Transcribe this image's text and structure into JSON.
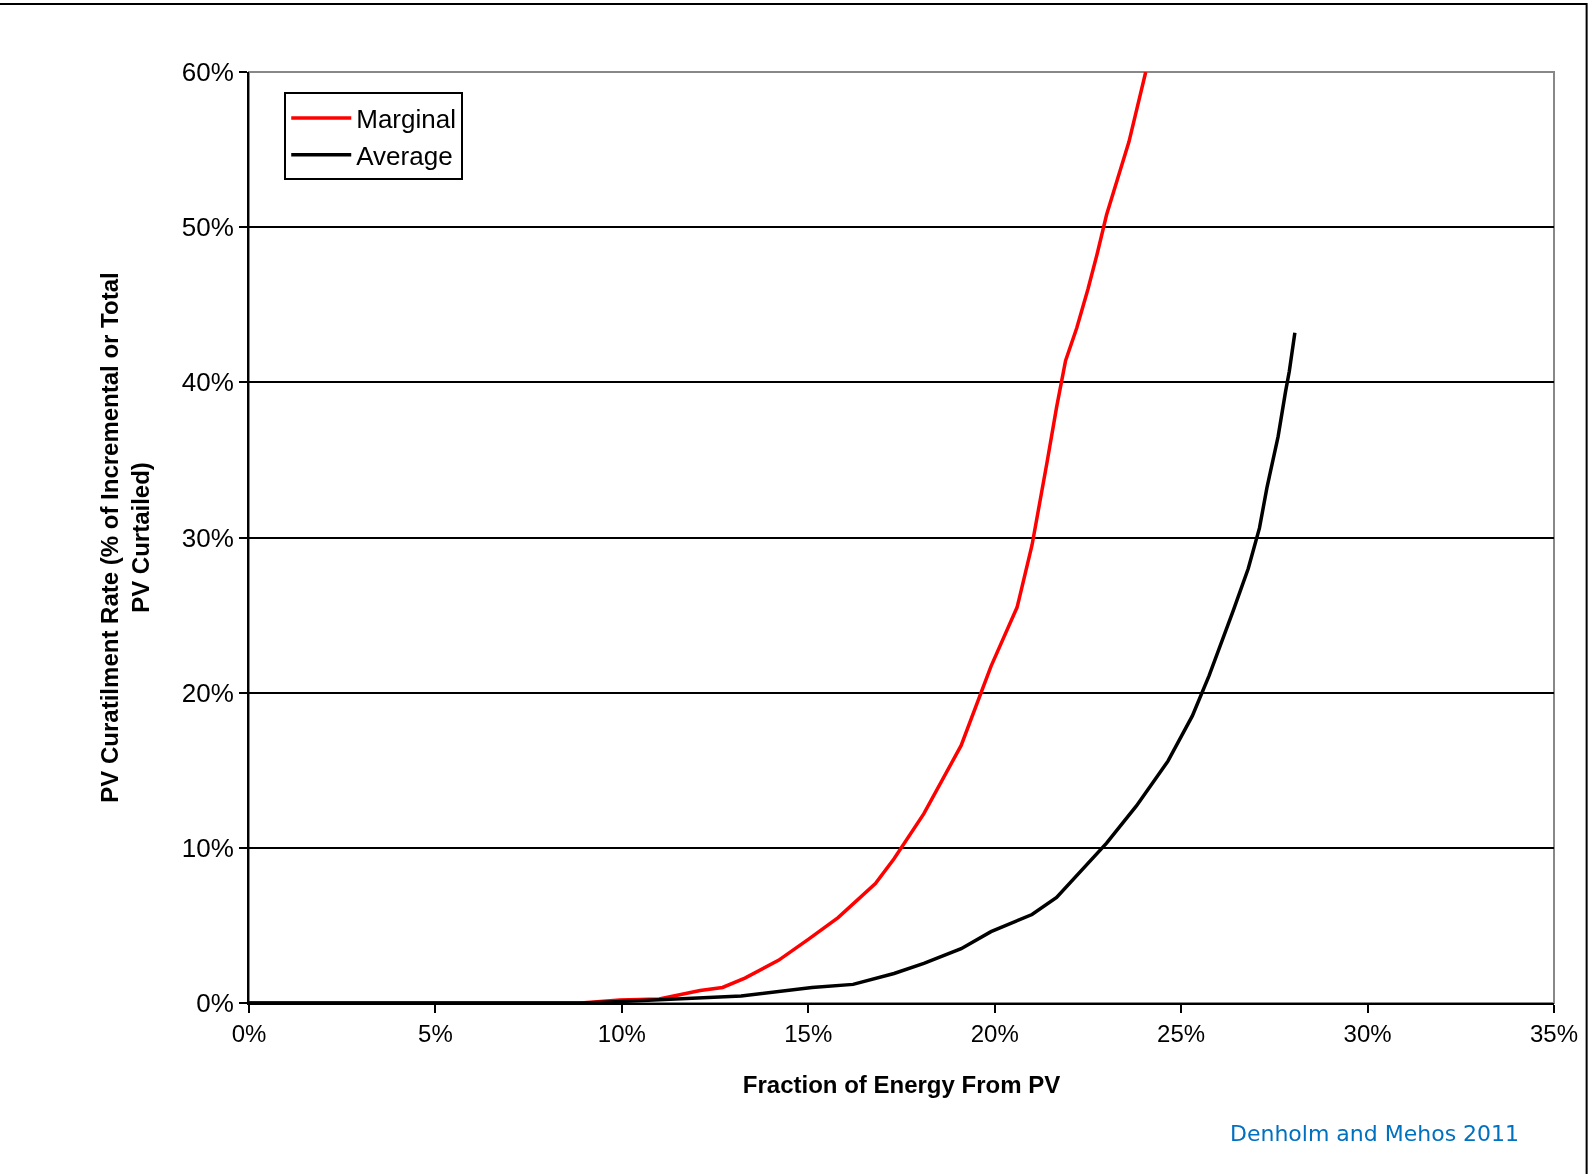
{
  "chart_data": {
    "type": "line",
    "xlabel": "Fraction of Energy From PV",
    "ylabel": "PV Curatilment Rate (% of Incremental or Total PV Curtailed)",
    "series": [
      {
        "name": "Marginal",
        "color": "#ff0000",
        "x": [
          0,
          8.9,
          9.95,
          11.0,
          12.1,
          12.7,
          13.3,
          14.2,
          15.0,
          15.8,
          16.8,
          17.3,
          18.1,
          19.1,
          19.9,
          20.6,
          21.0,
          21.4,
          21.66,
          21.9,
          22.2,
          22.5,
          22.75,
          23.0,
          23.6,
          24.05
        ],
        "values": [
          0,
          0,
          0.2,
          0.26,
          0.8,
          1.0,
          1.6,
          2.75,
          4.1,
          5.5,
          7.7,
          9.3,
          12.2,
          16.6,
          21.7,
          25.5,
          29.5,
          34.8,
          38.4,
          41.4,
          43.5,
          46.0,
          48.3,
          50.8,
          55.5,
          60
        ]
      },
      {
        "name": "Average",
        "color": "#000000",
        "x": [
          0,
          9.0,
          10.0,
          13.2,
          15.1,
          16.2,
          17.3,
          18.1,
          19.1,
          19.9,
          21.0,
          21.66,
          23.0,
          23.8,
          24.65,
          25.3,
          25.75,
          26.4,
          26.8,
          27.1,
          27.3,
          27.6,
          27.8,
          27.9,
          28.05
        ],
        "values": [
          0,
          0,
          0.1,
          0.45,
          1.0,
          1.2,
          1.9,
          2.55,
          3.5,
          4.6,
          5.7,
          6.8,
          10.3,
          12.7,
          15.6,
          18.5,
          21.1,
          25.3,
          28.0,
          30.6,
          33.2,
          36.5,
          39.4,
          40.7,
          43.2
        ]
      }
    ],
    "xlim": [
      0,
      35
    ],
    "xticks": [
      {
        "value": 0,
        "label": "0%"
      },
      {
        "value": 5,
        "label": "5%"
      },
      {
        "value": 10,
        "label": "10%"
      },
      {
        "value": 15,
        "label": "15%"
      },
      {
        "value": 20,
        "label": "20%"
      },
      {
        "value": 25,
        "label": "25%"
      },
      {
        "value": 30,
        "label": "30%"
      },
      {
        "value": 35,
        "label": "35%"
      }
    ],
    "ylim": [
      0,
      60
    ],
    "yticks": [
      {
        "value": 0,
        "label": "0%"
      },
      {
        "value": 10,
        "label": "10%"
      },
      {
        "value": 20,
        "label": "20%"
      },
      {
        "value": 30,
        "label": "30%"
      },
      {
        "value": 40,
        "label": "40%"
      },
      {
        "value": 50,
        "label": "50%"
      },
      {
        "value": 60,
        "label": "60%"
      }
    ],
    "grid": "y",
    "legend": "top left",
    "marker": "none",
    "line_style": "solid",
    "annotations": [
      "Denholm and Mehos 2011"
    ]
  }
}
